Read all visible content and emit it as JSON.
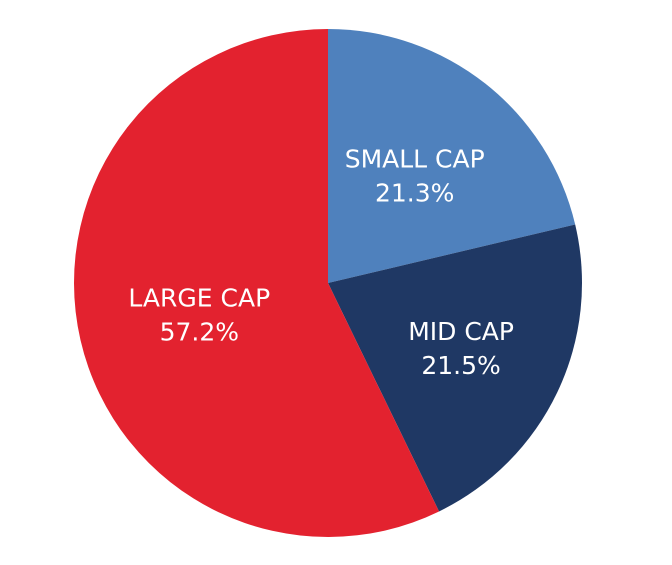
{
  "chart_data": {
    "type": "pie",
    "title": "",
    "legend": "none",
    "start_angle_deg": 0,
    "direction": "clockwise",
    "slices": [
      {
        "name": "SMALL CAP",
        "value": 21.3,
        "label": "21.3%",
        "color": "#4F81BD"
      },
      {
        "name": "MID CAP",
        "value": 21.5,
        "label": "21.5%",
        "color": "#1F3864"
      },
      {
        "name": "LARGE CAP",
        "value": 57.2,
        "label": "57.2%",
        "color": "#E3222F"
      }
    ]
  }
}
